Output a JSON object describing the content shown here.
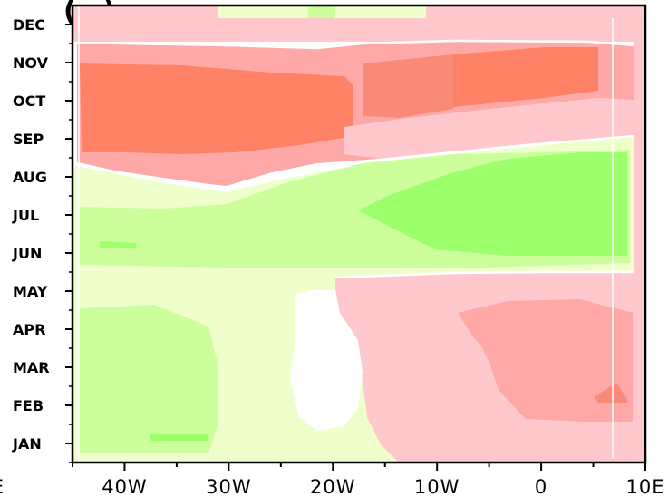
{
  "chart_data": {
    "type": "heatmap",
    "title": "(…) … … …",
    "x_axis": {
      "range": [
        -45,
        10
      ],
      "ticks": [
        {
          "value": -40,
          "label": "40W"
        },
        {
          "value": -30,
          "label": "30W"
        },
        {
          "value": -20,
          "label": "20W"
        },
        {
          "value": -10,
          "label": "10W"
        },
        {
          "value": 0,
          "label": "0"
        },
        {
          "value": 10,
          "label": "10E"
        }
      ],
      "partial_left_label": "E"
    },
    "y_axis": {
      "range": [
        0.5,
        12.5
      ],
      "ticks": [
        {
          "value": 1,
          "label": "JAN"
        },
        {
          "value": 2,
          "label": "FEB"
        },
        {
          "value": 3,
          "label": "MAR"
        },
        {
          "value": 4,
          "label": "APR"
        },
        {
          "value": 5,
          "label": "MAY"
        },
        {
          "value": 6,
          "label": "JUN"
        },
        {
          "value": 7,
          "label": "JUL"
        },
        {
          "value": 8,
          "label": "AUG"
        },
        {
          "value": 9,
          "label": "SEP"
        },
        {
          "value": 10,
          "label": "OCT"
        },
        {
          "value": 11,
          "label": "NOV"
        },
        {
          "value": 12,
          "label": "DEC"
        }
      ]
    },
    "color_levels": {
      "pos1": "#ffc8cc",
      "pos2": "#ffa8a8",
      "pos3": "#fa8a78",
      "pos4": "#ff8266",
      "neg1": "#eeffcc",
      "neg2": "#ccff9c",
      "neg3": "#9cff6c"
    },
    "regions": [
      {
        "level": "pos1",
        "shape": "rect",
        "lon": [
          -45,
          8
        ],
        "month": [
          9.0,
          12.2
        ]
      },
      {
        "level": "pos2",
        "shape": "rect",
        "lon": [
          -45,
          7
        ],
        "month": [
          9.2,
          11.7
        ]
      },
      {
        "level": "pos4",
        "shape": "rect",
        "lon": [
          -45,
          -18
        ],
        "month": [
          9.3,
          11.0
        ]
      },
      {
        "level": "pos4",
        "shape": "rect",
        "lon": [
          -10,
          5
        ],
        "month": [
          10.0,
          11.2
        ]
      },
      {
        "level": "neg1",
        "shape": "rect",
        "lon": [
          -45,
          9
        ],
        "month": [
          5.4,
          9.0
        ]
      },
      {
        "level": "neg2",
        "shape": "rect",
        "lon": [
          -45,
          8
        ],
        "month": [
          5.6,
          8.4
        ]
      },
      {
        "level": "neg3",
        "shape": "rect",
        "lon": [
          -15,
          8
        ],
        "month": [
          5.8,
          8.3
        ]
      },
      {
        "level": "neg1",
        "shape": "rect",
        "lon": [
          -45,
          -18
        ],
        "month": [
          0.5,
          5.4
        ]
      },
      {
        "level": "neg2",
        "shape": "rect",
        "lon": [
          -45,
          -32
        ],
        "month": [
          0.5,
          4.3
        ]
      },
      {
        "level": "pos1",
        "shape": "rect",
        "lon": [
          -18,
          8
        ],
        "month": [
          0.5,
          5.3
        ]
      },
      {
        "level": "pos2",
        "shape": "rect",
        "lon": [
          -9,
          8
        ],
        "month": [
          1.8,
          4.2
        ]
      }
    ]
  }
}
